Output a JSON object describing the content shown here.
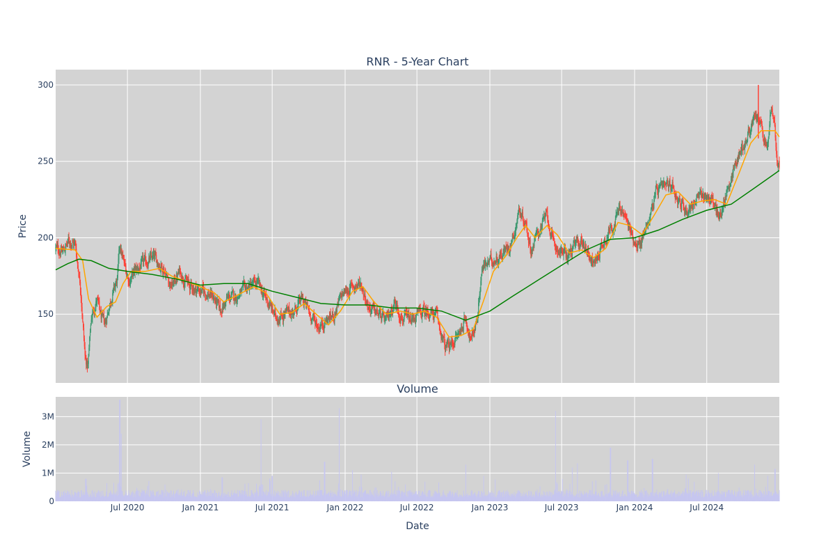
{
  "chart_data": [
    {
      "type": "candlestick",
      "title": "RNR - 5-Year Chart",
      "ylabel": "Price",
      "ylim": [
        105,
        310
      ],
      "y_ticks": [
        150,
        200,
        250,
        300
      ],
      "x_ticks": [
        "Jul 2020",
        "Jan 2021",
        "Jul 2021",
        "Jan 2022",
        "Jul 2022",
        "Jan 2023",
        "Jul 2023",
        "Jan 2024",
        "Jul 2024"
      ],
      "x_range": [
        "2020-01-02",
        "2024-12-31"
      ],
      "up_color": "#3d9970",
      "down_color": "#ff4136",
      "close_path": [
        [
          "2020-01-02",
          193
        ],
        [
          "2020-01-20",
          191
        ],
        [
          "2020-02-05",
          198
        ],
        [
          "2020-02-20",
          196
        ],
        [
          "2020-03-05",
          168
        ],
        [
          "2020-03-16",
          122
        ],
        [
          "2020-03-23",
          115
        ],
        [
          "2020-04-01",
          148
        ],
        [
          "2020-04-15",
          160
        ],
        [
          "2020-04-25",
          148
        ],
        [
          "2020-05-05",
          143
        ],
        [
          "2020-05-20",
          160
        ],
        [
          "2020-06-05",
          172
        ],
        [
          "2020-06-12",
          195
        ],
        [
          "2020-06-22",
          183
        ],
        [
          "2020-07-05",
          172
        ],
        [
          "2020-07-20",
          178
        ],
        [
          "2020-08-10",
          183
        ],
        [
          "2020-09-05",
          187
        ],
        [
          "2020-10-01",
          180
        ],
        [
          "2020-10-20",
          168
        ],
        [
          "2020-11-10",
          178
        ],
        [
          "2020-12-05",
          168
        ],
        [
          "2021-01-05",
          165
        ],
        [
          "2021-02-01",
          162
        ],
        [
          "2021-02-20",
          152
        ],
        [
          "2021-03-10",
          160
        ],
        [
          "2021-04-05",
          162
        ],
        [
          "2021-05-01",
          168
        ],
        [
          "2021-05-25",
          170
        ],
        [
          "2021-06-20",
          158
        ],
        [
          "2021-07-10",
          148
        ],
        [
          "2021-08-01",
          150
        ],
        [
          "2021-08-25",
          152
        ],
        [
          "2021-09-15",
          160
        ],
        [
          "2021-10-05",
          150
        ],
        [
          "2021-10-25",
          142
        ],
        [
          "2021-11-15",
          146
        ],
        [
          "2021-12-05",
          150
        ],
        [
          "2021-12-25",
          163
        ],
        [
          "2022-01-20",
          168
        ],
        [
          "2022-02-10",
          170
        ],
        [
          "2022-03-01",
          155
        ],
        [
          "2022-03-25",
          150
        ],
        [
          "2022-04-15",
          145
        ],
        [
          "2022-05-05",
          158
        ],
        [
          "2022-05-25",
          148
        ],
        [
          "2022-06-15",
          145
        ],
        [
          "2022-07-05",
          150
        ],
        [
          "2022-08-01",
          152
        ],
        [
          "2022-08-20",
          148
        ],
        [
          "2022-09-10",
          128
        ],
        [
          "2022-09-25",
          130
        ],
        [
          "2022-10-15",
          137
        ],
        [
          "2022-11-01",
          148
        ],
        [
          "2022-11-15",
          132
        ],
        [
          "2022-11-30",
          148
        ],
        [
          "2022-12-12",
          180
        ],
        [
          "2023-01-05",
          185
        ],
        [
          "2023-01-25",
          188
        ],
        [
          "2023-02-20",
          195
        ],
        [
          "2023-03-05",
          205
        ],
        [
          "2023-03-15",
          218
        ],
        [
          "2023-04-01",
          210
        ],
        [
          "2023-04-15",
          192
        ],
        [
          "2023-05-05",
          205
        ],
        [
          "2023-05-25",
          215
        ],
        [
          "2023-06-10",
          195
        ],
        [
          "2023-06-25",
          192
        ],
        [
          "2023-07-15",
          188
        ],
        [
          "2023-08-05",
          195
        ],
        [
          "2023-08-20",
          198
        ],
        [
          "2023-09-05",
          192
        ],
        [
          "2023-09-20",
          182
        ],
        [
          "2023-10-05",
          192
        ],
        [
          "2023-10-25",
          203
        ],
        [
          "2023-11-15",
          212
        ],
        [
          "2023-11-25",
          220
        ],
        [
          "2023-12-10",
          212
        ],
        [
          "2023-12-28",
          200
        ],
        [
          "2024-01-15",
          195
        ],
        [
          "2024-02-05",
          212
        ],
        [
          "2024-02-25",
          230
        ],
        [
          "2024-03-15",
          232
        ],
        [
          "2024-04-05",
          235
        ],
        [
          "2024-04-25",
          222
        ],
        [
          "2024-05-15",
          218
        ],
        [
          "2024-06-05",
          225
        ],
        [
          "2024-06-25",
          228
        ],
        [
          "2024-07-15",
          225
        ],
        [
          "2024-08-01",
          212
        ],
        [
          "2024-08-15",
          225
        ],
        [
          "2024-09-01",
          240
        ],
        [
          "2024-09-20",
          255
        ],
        [
          "2024-10-05",
          262
        ],
        [
          "2024-10-25",
          275
        ],
        [
          "2024-11-10",
          280
        ],
        [
          "2024-11-20",
          265
        ],
        [
          "2024-12-01",
          258
        ],
        [
          "2024-12-10",
          285
        ],
        [
          "2024-12-18",
          275
        ],
        [
          "2024-12-24",
          250
        ],
        [
          "2024-12-31",
          248
        ]
      ],
      "series": [
        {
          "line_color": "#ffa500",
          "values": [
            [
              "2020-01-02",
              193
            ],
            [
              "2020-02-20",
              192
            ],
            [
              "2020-03-10",
              185
            ],
            [
              "2020-03-25",
              160
            ],
            [
              "2020-04-15",
              148
            ],
            [
              "2020-05-10",
              155
            ],
            [
              "2020-06-01",
              158
            ],
            [
              "2020-06-20",
              170
            ],
            [
              "2020-07-10",
              178
            ],
            [
              "2020-08-15",
              178
            ],
            [
              "2020-09-20",
              180
            ],
            [
              "2020-10-20",
              175
            ],
            [
              "2020-11-20",
              172
            ],
            [
              "2021-01-01",
              168
            ],
            [
              "2021-02-05",
              164
            ],
            [
              "2021-03-01",
              158
            ],
            [
              "2021-04-01",
              162
            ],
            [
              "2021-05-15",
              168
            ],
            [
              "2021-06-15",
              164
            ],
            [
              "2021-07-20",
              150
            ],
            [
              "2021-08-20",
              151
            ],
            [
              "2021-09-20",
              157
            ],
            [
              "2021-10-20",
              150
            ],
            [
              "2021-11-20",
              143
            ],
            [
              "2021-12-20",
              152
            ],
            [
              "2022-01-20",
              165
            ],
            [
              "2022-02-15",
              168
            ],
            [
              "2022-03-15",
              158
            ],
            [
              "2022-04-15",
              150
            ],
            [
              "2022-05-20",
              152
            ],
            [
              "2022-06-20",
              150
            ],
            [
              "2022-07-20",
              152
            ],
            [
              "2022-08-20",
              148
            ],
            [
              "2022-09-20",
              135
            ],
            [
              "2022-10-20",
              136
            ],
            [
              "2022-11-20",
              140
            ],
            [
              "2022-12-15",
              158
            ],
            [
              "2023-01-10",
              178
            ],
            [
              "2023-02-10",
              188
            ],
            [
              "2023-03-10",
              200
            ],
            [
              "2023-04-01",
              208
            ],
            [
              "2023-04-25",
              200
            ],
            [
              "2023-05-25",
              208
            ],
            [
              "2023-06-20",
              202
            ],
            [
              "2023-07-20",
              190
            ],
            [
              "2023-08-20",
              192
            ],
            [
              "2023-09-20",
              187
            ],
            [
              "2023-10-20",
              193
            ],
            [
              "2023-11-20",
              210
            ],
            [
              "2023-12-20",
              208
            ],
            [
              "2024-01-20",
              202
            ],
            [
              "2024-02-20",
              215
            ],
            [
              "2024-03-20",
              228
            ],
            [
              "2024-04-20",
              230
            ],
            [
              "2024-05-20",
              222
            ],
            [
              "2024-06-20",
              224
            ],
            [
              "2024-07-20",
              225
            ],
            [
              "2024-08-20",
              222
            ],
            [
              "2024-09-20",
              242
            ],
            [
              "2024-10-20",
              262
            ],
            [
              "2024-11-15",
              270
            ],
            [
              "2024-12-05",
              270
            ],
            [
              "2024-12-20",
              270
            ],
            [
              "2024-12-31",
              266
            ]
          ]
        },
        {
          "line_color": "#008000",
          "values": [
            [
              "2020-01-02",
              179
            ],
            [
              "2020-02-01",
              183
            ],
            [
              "2020-03-01",
              186
            ],
            [
              "2020-04-01",
              185
            ],
            [
              "2020-05-15",
              180
            ],
            [
              "2020-07-01",
              178
            ],
            [
              "2020-09-01",
              176
            ],
            [
              "2020-11-01",
              173
            ],
            [
              "2021-01-01",
              169
            ],
            [
              "2021-03-01",
              170
            ],
            [
              "2021-05-01",
              170
            ],
            [
              "2021-07-01",
              165
            ],
            [
              "2021-09-01",
              161
            ],
            [
              "2021-11-01",
              157
            ],
            [
              "2022-01-01",
              156
            ],
            [
              "2022-03-01",
              156
            ],
            [
              "2022-05-01",
              154
            ],
            [
              "2022-07-01",
              154
            ],
            [
              "2022-09-01",
              152
            ],
            [
              "2022-11-01",
              146
            ],
            [
              "2023-01-01",
              152
            ],
            [
              "2023-03-01",
              162
            ],
            [
              "2023-05-01",
              172
            ],
            [
              "2023-07-01",
              182
            ],
            [
              "2023-09-01",
              192
            ],
            [
              "2023-11-01",
              199
            ],
            [
              "2024-01-01",
              200
            ],
            [
              "2024-03-01",
              205
            ],
            [
              "2024-05-01",
              212
            ],
            [
              "2024-07-01",
              218
            ],
            [
              "2024-09-01",
              222
            ],
            [
              "2024-11-01",
              233
            ],
            [
              "2024-12-31",
              244
            ]
          ]
        }
      ]
    },
    {
      "type": "bar",
      "title": "Volume",
      "xlabel": "Date",
      "ylabel": "Volume",
      "ylim": [
        0,
        3700000
      ],
      "y_ticks": [
        {
          "value": 0,
          "label": "0"
        },
        {
          "value": 1000000,
          "label": "1M"
        },
        {
          "value": 2000000,
          "label": "2M"
        },
        {
          "value": 3000000,
          "label": "3M"
        }
      ],
      "x_range": [
        "2020-01-02",
        "2024-12-31"
      ],
      "bar_color": "#c6c6f0",
      "base_level": 300000,
      "spikes": [
        [
          "2020-03-18",
          800000
        ],
        [
          "2020-06-12",
          3600000
        ],
        [
          "2020-06-15",
          2400000
        ],
        [
          "2021-02-25",
          850000
        ],
        [
          "2021-06-03",
          2900000
        ],
        [
          "2021-07-01",
          900000
        ],
        [
          "2021-11-10",
          1400000
        ],
        [
          "2021-12-17",
          3300000
        ],
        [
          "2022-01-20",
          1100000
        ],
        [
          "2022-02-10",
          950000
        ],
        [
          "2022-04-28",
          1050000
        ],
        [
          "2022-11-01",
          1300000
        ],
        [
          "2022-12-16",
          900000
        ],
        [
          "2023-06-16",
          3200000
        ],
        [
          "2023-07-28",
          1200000
        ],
        [
          "2023-08-10",
          1350000
        ],
        [
          "2023-11-01",
          1900000
        ],
        [
          "2023-12-15",
          1450000
        ],
        [
          "2024-02-15",
          1500000
        ],
        [
          "2024-05-10",
          950000
        ],
        [
          "2024-07-30",
          1000000
        ],
        [
          "2024-10-30",
          1300000
        ],
        [
          "2024-12-02",
          900000
        ],
        [
          "2024-12-20",
          1150000
        ]
      ]
    }
  ],
  "colors": {
    "plot_bg": "#d3d3d3",
    "grid": "#ffffff",
    "text": "#2a3f5f"
  }
}
